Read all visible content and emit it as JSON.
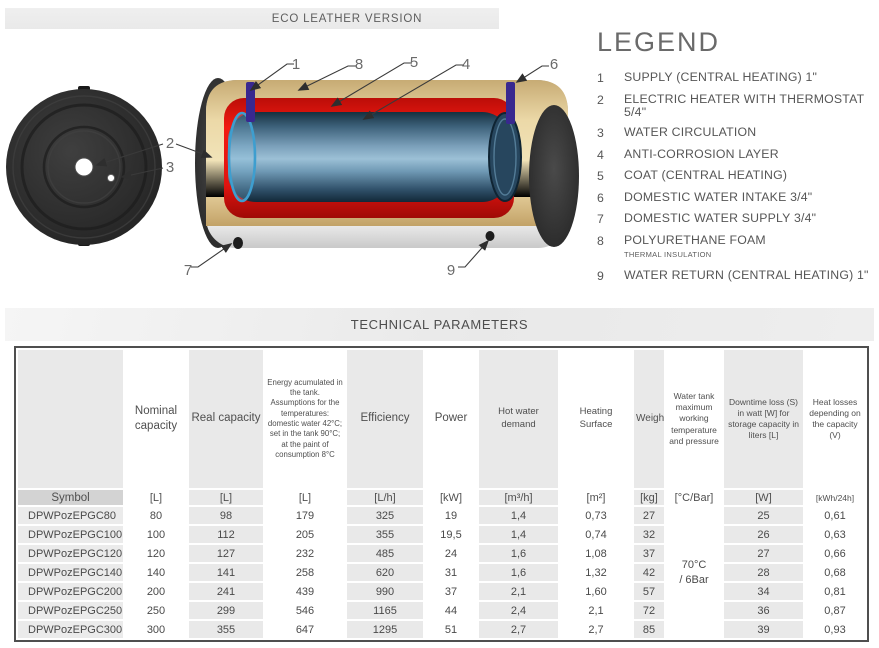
{
  "header": {
    "version_label": "ECO LEATHER VERSION"
  },
  "legend": {
    "title": "LEGEND",
    "items": [
      {
        "num": "1",
        "text": "SUPPLY (CENTRAL HEATING) 1\""
      },
      {
        "num": "2",
        "text": "ELECTRIC HEATER WITH THERMOSTAT 5/4\""
      },
      {
        "num": "3",
        "text": "WATER CIRCULATION"
      },
      {
        "num": "4",
        "text": "ANTI-CORROSION LAYER"
      },
      {
        "num": "5",
        "text": "COAT (CENTRAL HEATING)"
      },
      {
        "num": "6",
        "text": "DOMESTIC WATER INTAKE 3/4\""
      },
      {
        "num": "7",
        "text": "DOMESTIC WATER SUPPLY 3/4\""
      },
      {
        "num": "8",
        "text": "POLYURETHANE FOAM",
        "subtext": "THERMAL INSULATION"
      },
      {
        "num": "9",
        "text": "WATER RETURN (CENTRAL HEATING) 1\""
      }
    ]
  },
  "diagram": {
    "callouts": [
      "1",
      "2",
      "3",
      "4",
      "5",
      "6",
      "7",
      "8",
      "9"
    ],
    "colors": {
      "insulation_tan": "#e6cf9c",
      "coat_red": "#e81510",
      "tank_blue": "#5d87a4",
      "end_cap_dark": "#2e2e2e",
      "fitting_purple": "#39288f",
      "jacket_silver": "#d9d9d9",
      "anticorrosion_magenta": "#8c2f88"
    }
  },
  "table": {
    "title": "TECHNICAL PARAMETERS",
    "columns": [
      {
        "label": "",
        "unit": "Symbol"
      },
      {
        "label": "Nominal capacity",
        "unit": "[L]"
      },
      {
        "label": "Real capacity",
        "unit": "[L]"
      },
      {
        "label": "Energy acumulated in the tank. Assumptions for the temperatures: domestic water 42°C; set in the tank 90°C; at the paint of consumption 8°C",
        "unit": "[L]"
      },
      {
        "label": "Efficiency",
        "unit": "[L/h]"
      },
      {
        "label": "Power",
        "unit": "[kW]"
      },
      {
        "label": "Hot water demand",
        "unit": "[m³/h]"
      },
      {
        "label": "Heating Surface",
        "unit": "[m²]"
      },
      {
        "label": "Weight",
        "unit": "[kg]"
      },
      {
        "label": "Water tank maximum working temperature and pressure",
        "unit": "[°C/Bar]"
      },
      {
        "label": "Downtime loss (S) in watt [W] for storage capacity in liters [L]",
        "unit": "[W]"
      },
      {
        "label": "Heat losses depending on the capacity (V)",
        "unit": "[kWh/24h]"
      }
    ],
    "water_tank_rating": "70°C\n/ 6Bar",
    "rows": [
      [
        "DPWPozEPGC80",
        "80",
        "98",
        "179",
        "325",
        "19",
        "1,4",
        "0,73",
        "27",
        "25",
        "0,61"
      ],
      [
        "DPWPozEPGC100",
        "100",
        "112",
        "205",
        "355",
        "19,5",
        "1,4",
        "0,74",
        "32",
        "26",
        "0,63"
      ],
      [
        "DPWPozEPGC120",
        "120",
        "127",
        "232",
        "485",
        "24",
        "1,6",
        "1,08",
        "37",
        "27",
        "0,66"
      ],
      [
        "DPWPozEPGC140",
        "140",
        "141",
        "258",
        "620",
        "31",
        "1,6",
        "1,32",
        "42",
        "28",
        "0,68"
      ],
      [
        "DPWPozEPGC200",
        "200",
        "241",
        "439",
        "990",
        "37",
        "2,1",
        "1,60",
        "57",
        "34",
        "0,81"
      ],
      [
        "DPWPozEPGC250",
        "250",
        "299",
        "546",
        "1165",
        "44",
        "2,4",
        "2,1",
        "72",
        "36",
        "0,87"
      ],
      [
        "DPWPozEPGC300",
        "300",
        "355",
        "647",
        "1295",
        "51",
        "2,7",
        "2,7",
        "85",
        "39",
        "0,93"
      ]
    ]
  }
}
